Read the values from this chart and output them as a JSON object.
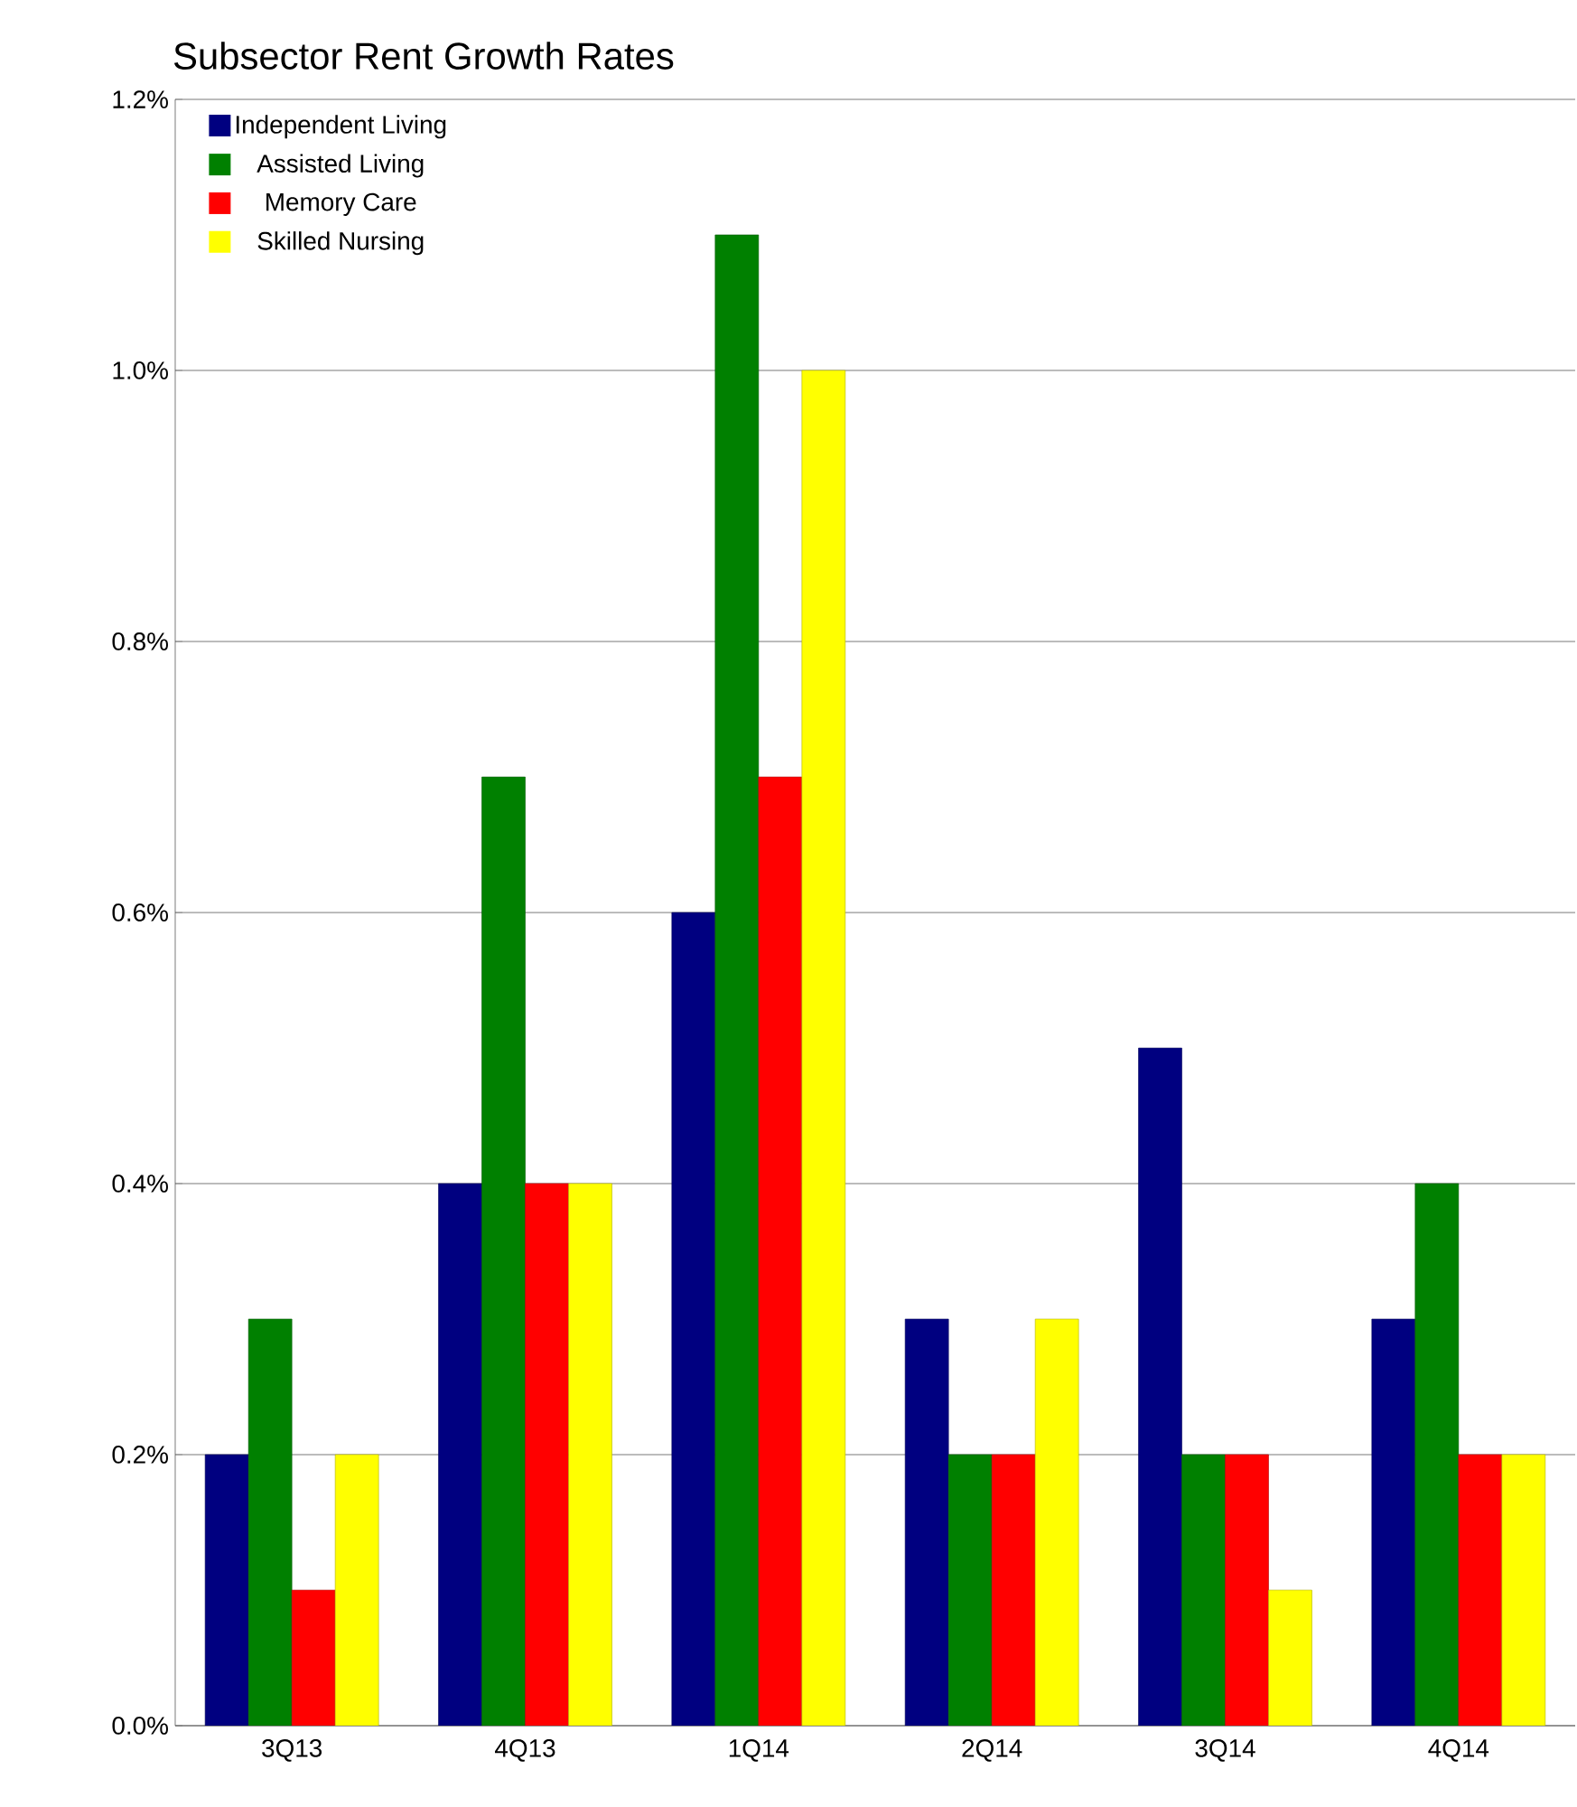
{
  "chart_data": {
    "type": "bar",
    "title": "Subsector Rent Growth Rates",
    "categories": [
      "3Q13",
      "4Q13",
      "1Q14",
      "2Q14",
      "3Q14",
      "4Q14"
    ],
    "series": [
      {
        "name": "Independent  Living",
        "color": "#000080",
        "values": [
          0.2,
          0.4,
          0.6,
          0.3,
          0.5,
          0.3
        ]
      },
      {
        "name": "Assisted Living",
        "color": "#008000",
        "values": [
          0.3,
          0.7,
          1.1,
          0.2,
          0.2,
          0.4
        ]
      },
      {
        "name": "Memory Care",
        "color": "#ff0000",
        "values": [
          0.1,
          0.4,
          0.7,
          0.2,
          0.2,
          0.2
        ]
      },
      {
        "name": "Skilled Nursing",
        "color": "#ffff00",
        "values": [
          0.2,
          0.4,
          1.0,
          0.3,
          0.1,
          0.2
        ]
      }
    ],
    "ylim": [
      0,
      1.2
    ],
    "yticks": [
      {
        "value": 0,
        "label": "0.0%"
      },
      {
        "value": 0.2,
        "label": "0.2%"
      },
      {
        "value": 0.4,
        "label": "0.4%"
      },
      {
        "value": 0.6,
        "label": "0.6%"
      },
      {
        "value": 0.8,
        "label": "0.8%"
      },
      {
        "value": 1.0,
        "label": "1.0%"
      },
      {
        "value": 1.2,
        "label": "1.2%"
      }
    ],
    "grid": "y",
    "legend": "top left"
  }
}
